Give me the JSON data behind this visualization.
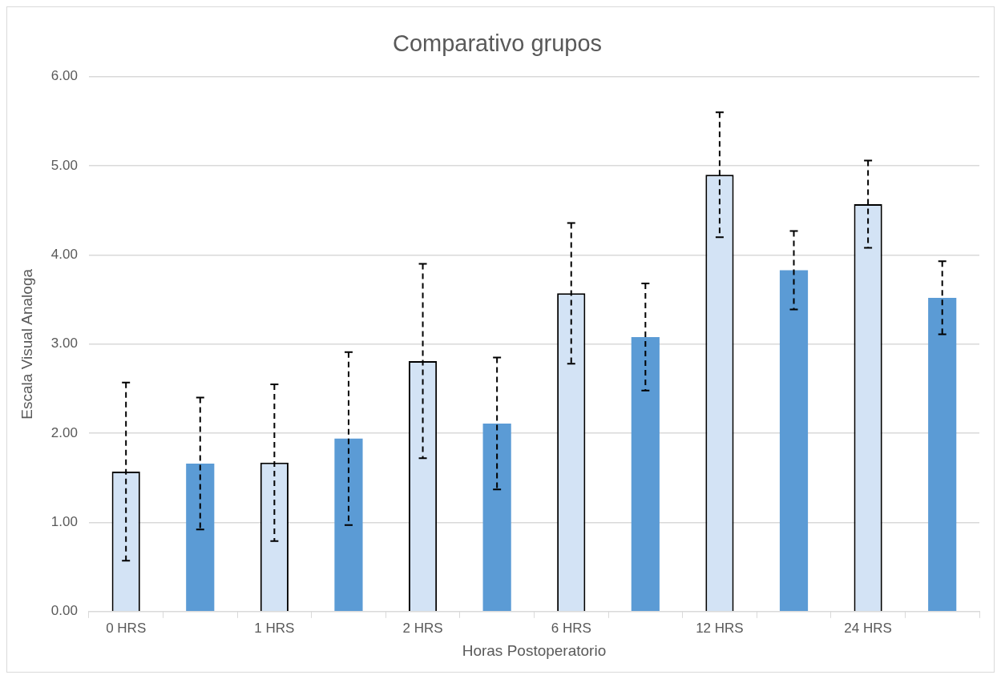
{
  "chart_data": {
    "type": "bar",
    "title": "Comparativo grupos",
    "xlabel": "Horas Postoperatorio",
    "ylabel": "Escala Visual Analoga",
    "categories": [
      "0 HRS",
      null,
      "1 HRS",
      null,
      "2 HRS",
      null,
      "6 HRS",
      null,
      "12 HRS",
      null,
      "24 HRS",
      null
    ],
    "values": [
      1.57,
      1.66,
      1.67,
      1.94,
      2.81,
      2.11,
      3.57,
      3.08,
      4.9,
      3.83,
      4.57,
      3.52
    ],
    "errors": [
      1.0,
      0.74,
      0.88,
      0.97,
      1.09,
      0.74,
      0.79,
      0.6,
      0.7,
      0.44,
      0.49,
      0.41
    ],
    "colors": [
      "#d3e3f5",
      "#5b9bd5",
      "#d3e3f5",
      "#5b9bd5",
      "#d3e3f5",
      "#5b9bd5",
      "#d3e3f5",
      "#5b9bd5",
      "#d3e3f5",
      "#5b9bd5",
      "#d3e3f5",
      "#5b9bd5"
    ],
    "ylim": [
      0,
      6
    ],
    "yticks": [
      {
        "value": 0,
        "label": "0.00"
      },
      {
        "value": 1,
        "label": "1.00"
      },
      {
        "value": 2,
        "label": "2.00"
      },
      {
        "value": 3,
        "label": "3.00"
      },
      {
        "value": 4,
        "label": "4.00"
      },
      {
        "value": 5,
        "label": "5.00"
      },
      {
        "value": 6,
        "label": "6.00"
      }
    ],
    "grid": "y",
    "legend": false,
    "line_style": "dashed"
  }
}
